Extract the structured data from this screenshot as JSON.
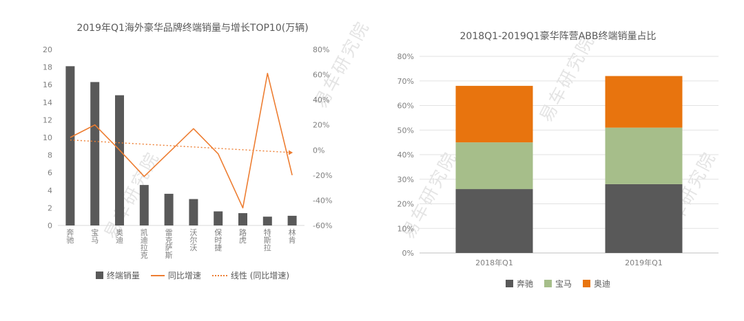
{
  "watermark": {
    "text": "易车研究院"
  },
  "chart_data": [
    {
      "type": "bar",
      "subtype": "bar-line-combo",
      "title": "2019年Q1海外豪华品牌终端销量与增长TOP10(万辆)",
      "categories": [
        "奔驰",
        "宝马",
        "奥迪",
        "凯迪拉克",
        "雷克萨斯",
        "沃尔沃",
        "保时捷",
        "路虎",
        "特斯拉",
        "林肯"
      ],
      "bar_series": {
        "name": "终端销量",
        "unit": "万辆",
        "values": [
          18.1,
          16.3,
          14.8,
          4.6,
          3.6,
          3.0,
          1.6,
          1.4,
          1.0,
          1.1
        ],
        "color": "#595959"
      },
      "line_series": {
        "name": "同比增速",
        "unit": "%",
        "values_pct": [
          10,
          20,
          0,
          -21,
          -2,
          17,
          -3,
          -46,
          61,
          -20
        ],
        "color": "#ED7D31"
      },
      "trend_series": {
        "name": "线性 (同比增速)",
        "start_pct": 8,
        "end_pct": -2,
        "color": "#ED7D31"
      },
      "left_axis": {
        "min": 0,
        "max": 20,
        "step": 2,
        "suffix": ""
      },
      "right_axis": {
        "min": -60,
        "max": 80,
        "step": 20,
        "suffix": "%"
      },
      "grid": false,
      "legend_position": "bottom"
    },
    {
      "type": "bar",
      "subtype": "stacked-bar",
      "title": "2018Q1-2019Q1豪华阵营ABB终端销量占比",
      "categories": [
        "2018年Q1",
        "2019年Q1"
      ],
      "series": [
        {
          "name": "奔驰",
          "values_pct": [
            26,
            28
          ],
          "color": "#595959"
        },
        {
          "name": "宝马",
          "values_pct": [
            19,
            23
          ],
          "color": "#A6BE8A"
        },
        {
          "name": "奥迪",
          "values_pct": [
            23,
            21
          ],
          "color": "#E8740E"
        }
      ],
      "totals_pct": [
        68,
        72
      ],
      "y_axis": {
        "min": 0,
        "max": 80,
        "step": 10,
        "suffix": "%"
      },
      "grid": true,
      "legend_position": "bottom"
    }
  ]
}
